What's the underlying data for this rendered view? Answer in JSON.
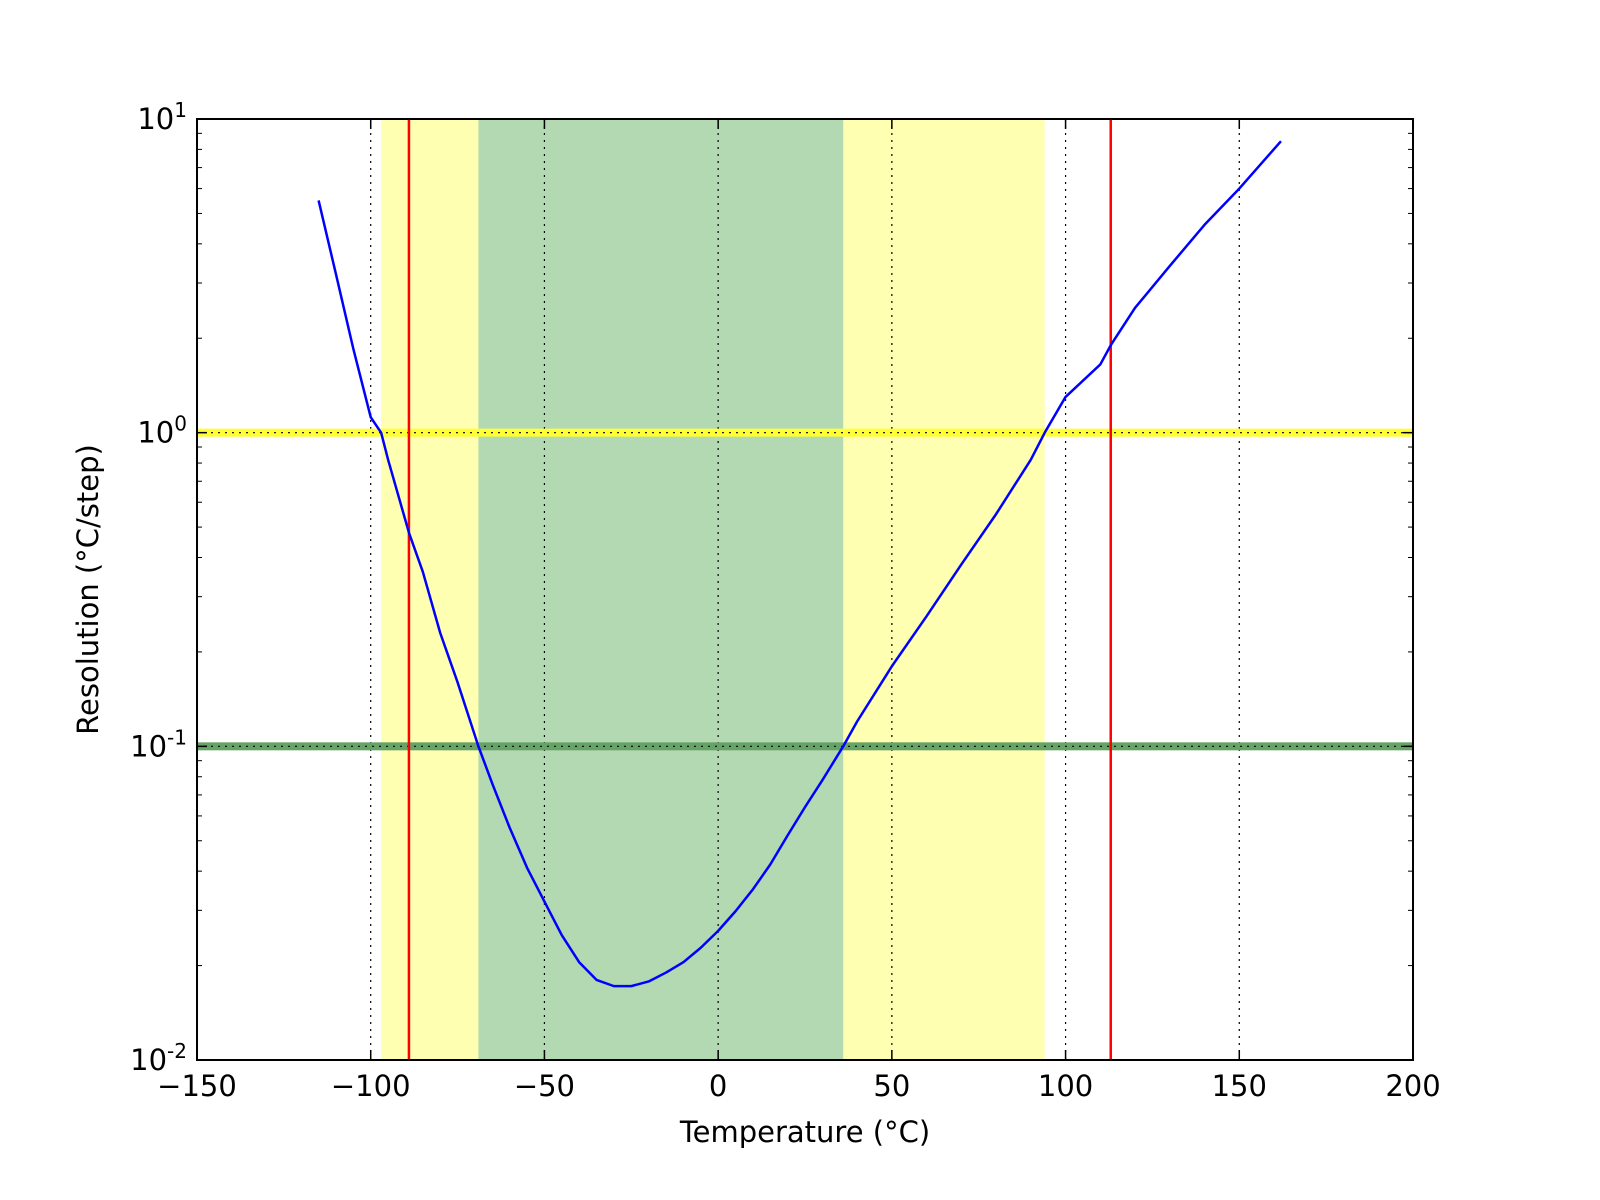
{
  "chart_data": {
    "type": "line",
    "title": "",
    "xlabel": "Temperature (°C)",
    "ylabel": "Resolution (°C/step)",
    "xlim": [
      -150,
      200
    ],
    "ylim": [
      0.01,
      10
    ],
    "yscale": "log",
    "grid": "vertical dotted lines at major x ticks",
    "x_ticks": [
      {
        "value": -150,
        "label": "−150"
      },
      {
        "value": -100,
        "label": "−100"
      },
      {
        "value": -50,
        "label": "−50"
      },
      {
        "value": 0,
        "label": "0"
      },
      {
        "value": 50,
        "label": "50"
      },
      {
        "value": 100,
        "label": "100"
      },
      {
        "value": 150,
        "label": "150"
      },
      {
        "value": 200,
        "label": "200"
      }
    ],
    "y_ticks": [
      {
        "value": 0.01,
        "base": "10",
        "exp": "-2"
      },
      {
        "value": 0.1,
        "base": "10",
        "exp": "-1"
      },
      {
        "value": 1,
        "base": "10",
        "exp": "0"
      },
      {
        "value": 10,
        "base": "10",
        "exp": "1"
      }
    ],
    "shaded_regions": [
      {
        "x": [
          -97,
          94
        ],
        "color": "#ffffb2"
      },
      {
        "x": [
          -69,
          36
        ],
        "color": "#b3d9b3"
      }
    ],
    "horizontal_bands": [
      {
        "y": 1.0,
        "color": "#ffff33",
        "style": "dotted"
      },
      {
        "y": 0.1,
        "color": "#66a366",
        "style": "dotted"
      }
    ],
    "vertical_lines": [
      {
        "x": -89,
        "color": "#ff0000"
      },
      {
        "x": 113,
        "color": "#ff0000"
      }
    ],
    "series": [
      {
        "color": "#0000ff",
        "x": [
          -115,
          -110,
          -105,
          -100,
          -97,
          -95,
          -89,
          -85,
          -80,
          -75,
          -69,
          -65,
          -60,
          -55,
          -50,
          -45,
          -40,
          -35,
          -30,
          -25,
          -20,
          -15,
          -10,
          -5,
          0,
          5,
          10,
          15,
          20,
          25,
          30,
          36,
          40,
          50,
          60,
          70,
          80,
          90,
          94,
          100,
          110,
          113,
          120,
          130,
          140,
          150,
          162
        ],
        "y": [
          5.5,
          3.2,
          1.85,
          1.12,
          1.0,
          0.82,
          0.48,
          0.36,
          0.23,
          0.16,
          0.1,
          0.076,
          0.055,
          0.041,
          0.032,
          0.025,
          0.0205,
          0.018,
          0.0172,
          0.0172,
          0.0178,
          0.019,
          0.0205,
          0.0228,
          0.0258,
          0.0298,
          0.035,
          0.042,
          0.052,
          0.064,
          0.078,
          0.1,
          0.12,
          0.18,
          0.26,
          0.38,
          0.55,
          0.82,
          1.0,
          1.3,
          1.65,
          1.9,
          2.5,
          3.4,
          4.6,
          6.0,
          8.5
        ]
      }
    ]
  }
}
